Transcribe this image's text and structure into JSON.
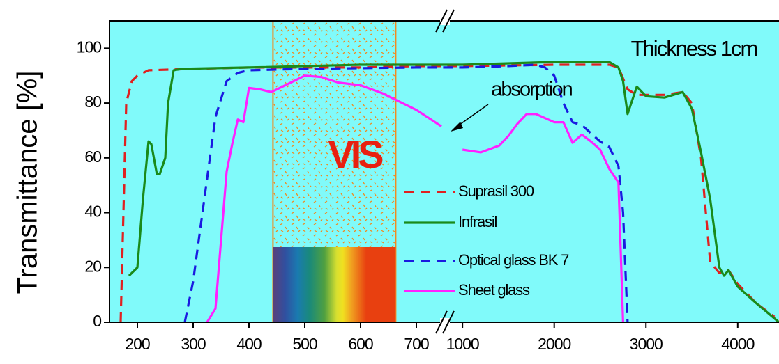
{
  "chart_data": {
    "type": "line",
    "y_label": "Transmittance [%]",
    "annotations": {
      "thickness": "Thickness 1cm",
      "absorption": "absorption",
      "vis": "VIS"
    },
    "background": "#80fafa",
    "xlim": [
      150,
      4450
    ],
    "x_break": [
      750,
      900
    ],
    "ylim": [
      0,
      110
    ],
    "xticks": [
      200,
      300,
      400,
      500,
      600,
      700,
      1000,
      2000,
      3000,
      4000
    ],
    "yticks": [
      0,
      20,
      40,
      60,
      80,
      100
    ],
    "vis_region": [
      443,
      663
    ],
    "series": [
      {
        "name": "Suprasil 300",
        "color": "#e02020",
        "line_style": "dashed",
        "x": [
          170,
          175,
          180,
          190,
          200,
          220,
          300,
          400,
          500,
          600,
          700,
          750,
          1000,
          2000,
          2600,
          2700,
          2800,
          2900,
          3000,
          3200,
          3400,
          3500,
          3600,
          3700,
          3800,
          3900,
          4000,
          4200,
          4400
        ],
        "values": [
          0,
          40,
          80,
          88,
          90,
          92,
          92.5,
          93,
          93,
          93,
          93.5,
          93.5,
          93.5,
          94,
          94,
          93,
          85,
          83,
          83,
          83,
          84,
          80,
          60,
          22,
          18,
          19,
          14,
          7,
          2
        ]
      },
      {
        "name": "Infrasil",
        "color": "#1a8a1a",
        "line_style": "solid",
        "x": [
          185,
          200,
          210,
          220,
          225,
          235,
          240,
          250,
          255,
          265,
          280,
          400,
          600,
          750,
          1000,
          2000,
          2600,
          2700,
          2750,
          2800,
          2900,
          3000,
          3200,
          3400,
          3500,
          3600,
          3700,
          3800,
          3850,
          3900,
          4000,
          4200,
          4450
        ],
        "values": [
          17,
          20,
          45,
          66,
          65,
          54,
          54,
          60,
          80,
          92,
          92.5,
          93,
          94,
          94,
          94,
          95,
          95,
          93,
          88,
          76,
          86,
          82.5,
          82,
          84,
          78,
          62,
          45,
          20,
          17,
          19,
          13,
          7,
          0
        ]
      },
      {
        "name": "Optical glass BK 7",
        "color": "#1a1ae0",
        "line_style": "dashed",
        "x": [
          285,
          300,
          320,
          340,
          360,
          380,
          400,
          500,
          700,
          750,
          1000,
          1500,
          1800,
          1900,
          2000,
          2100,
          2200,
          2300,
          2400,
          2500,
          2600,
          2700,
          2750,
          2800
        ],
        "values": [
          0,
          15,
          45,
          75,
          88,
          91,
          92,
          92.5,
          93,
          93,
          93,
          93.5,
          94,
          93,
          90,
          80,
          73,
          72,
          69,
          66,
          64,
          57,
          40,
          0
        ]
      },
      {
        "name": "Sheet glass",
        "color": "#ff20ff",
        "line_style": "solid",
        "x": [
          325,
          340,
          360,
          370,
          380,
          390,
          400,
          420,
          440,
          460,
          500,
          530,
          560,
          600,
          640,
          700,
          745,
          null,
          1000,
          1200,
          1400,
          1500,
          1600,
          1700,
          1800,
          2000,
          2100,
          2200,
          2300,
          2400,
          2500,
          2600,
          2700,
          2750
        ],
        "values": [
          0,
          5,
          55,
          65,
          74,
          73,
          85.5,
          85,
          84,
          86,
          90,
          89.5,
          87.5,
          86.5,
          83.5,
          77.5,
          71.5,
          null,
          63,
          62,
          64.5,
          68,
          72.5,
          76,
          76,
          73,
          73,
          65.5,
          68.5,
          66,
          63,
          56,
          51,
          0
        ]
      }
    ]
  }
}
